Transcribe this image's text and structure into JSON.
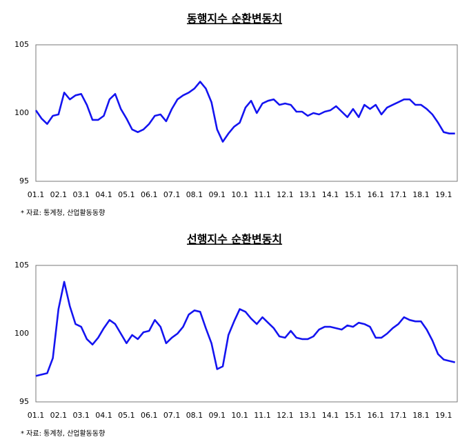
{
  "chart_data": [
    {
      "type": "line",
      "title": "동행지수 순환변동치",
      "source": "* 자료: 통계청, 산업활동동향",
      "x": [
        1,
        1.25,
        1.5,
        1.75,
        2,
        2.25,
        2.5,
        2.75,
        3,
        3.25,
        3.5,
        3.75,
        4,
        4.25,
        4.5,
        4.75,
        5,
        5.25,
        5.5,
        5.75,
        6,
        6.25,
        6.5,
        6.75,
        7,
        7.25,
        7.5,
        7.75,
        8,
        8.25,
        8.5,
        8.75,
        9,
        9.25,
        9.5,
        9.75,
        10,
        10.25,
        10.5,
        10.75,
        11,
        11.25,
        11.5,
        11.75,
        12,
        12.25,
        12.5,
        12.75,
        13,
        13.25,
        13.5,
        13.75,
        14,
        14.25,
        14.5,
        14.75,
        15,
        15.25,
        15.5,
        15.75,
        16,
        16.25,
        16.5,
        16.75,
        17,
        17.25,
        17.5,
        17.75,
        18,
        18.25,
        18.5,
        18.75,
        19,
        19.25,
        19.5
      ],
      "series": [
        {
          "color": "#1414f0",
          "values": [
            100.2,
            99.6,
            99.2,
            99.8,
            99.9,
            101.5,
            101.0,
            101.3,
            101.4,
            100.6,
            99.5,
            99.5,
            99.8,
            101.0,
            101.4,
            100.3,
            99.6,
            98.8,
            98.6,
            98.8,
            99.2,
            99.8,
            99.9,
            99.4,
            100.3,
            101.0,
            101.3,
            101.5,
            101.8,
            102.3,
            101.8,
            100.8,
            98.8,
            97.9,
            98.5,
            99.0,
            99.3,
            100.4,
            100.9,
            100.0,
            100.7,
            100.9,
            101.0,
            100.6,
            100.7,
            100.6,
            100.1,
            100.1,
            99.8,
            100.0,
            99.9,
            100.1,
            100.2,
            100.5,
            100.1,
            99.7,
            100.3,
            99.7,
            100.6,
            100.3,
            100.6,
            99.9,
            100.4,
            100.6,
            100.8,
            101.0,
            101.0,
            100.6,
            100.6,
            100.3,
            99.9,
            99.3,
            98.6,
            98.5,
            98.5
          ]
        }
      ],
      "xlim": [
        1,
        19.6
      ],
      "xticks": [
        {
          "value": 1,
          "label": "01.1"
        },
        {
          "value": 2,
          "label": "02.1"
        },
        {
          "value": 3,
          "label": "03.1"
        },
        {
          "value": 4,
          "label": "04.1"
        },
        {
          "value": 5,
          "label": "05.1"
        },
        {
          "value": 6,
          "label": "06.1"
        },
        {
          "value": 7,
          "label": "07.1"
        },
        {
          "value": 8,
          "label": "08.1"
        },
        {
          "value": 9,
          "label": "09.1"
        },
        {
          "value": 10,
          "label": "10.1"
        },
        {
          "value": 11,
          "label": "11.1"
        },
        {
          "value": 12,
          "label": "12.1"
        },
        {
          "value": 13,
          "label": "13.1"
        },
        {
          "value": 14,
          "label": "14.1"
        },
        {
          "value": 15,
          "label": "15.1"
        },
        {
          "value": 16,
          "label": "16.1"
        },
        {
          "value": 17,
          "label": "17.1"
        },
        {
          "value": 18,
          "label": "18.1"
        },
        {
          "value": 19,
          "label": "19.1"
        }
      ],
      "ylim": [
        95,
        105
      ],
      "yticks": [
        95,
        100,
        105
      ]
    },
    {
      "type": "line",
      "title": "선행지수 순환변동치",
      "source": "* 자료: 통계청, 산업활동동향",
      "x": [
        1,
        1.25,
        1.5,
        1.75,
        2,
        2.25,
        2.5,
        2.75,
        3,
        3.25,
        3.5,
        3.75,
        4,
        4.25,
        4.5,
        4.75,
        5,
        5.25,
        5.5,
        5.75,
        6,
        6.25,
        6.5,
        6.75,
        7,
        7.25,
        7.5,
        7.75,
        8,
        8.25,
        8.5,
        8.75,
        9,
        9.25,
        9.5,
        9.75,
        10,
        10.25,
        10.5,
        10.75,
        11,
        11.25,
        11.5,
        11.75,
        12,
        12.25,
        12.5,
        12.75,
        13,
        13.25,
        13.5,
        13.75,
        14,
        14.25,
        14.5,
        14.75,
        15,
        15.25,
        15.5,
        15.75,
        16,
        16.25,
        16.5,
        16.75,
        17,
        17.25,
        17.5,
        17.75,
        18,
        18.25,
        18.5,
        18.75,
        19,
        19.25,
        19.5
      ],
      "series": [
        {
          "color": "#1414f0",
          "values": [
            96.9,
            97.0,
            97.1,
            98.2,
            101.8,
            103.8,
            102.0,
            100.7,
            100.5,
            99.6,
            99.2,
            99.7,
            100.4,
            101.0,
            100.7,
            100.0,
            99.3,
            99.9,
            99.6,
            100.1,
            100.2,
            101.0,
            100.5,
            99.3,
            99.7,
            100.0,
            100.5,
            101.4,
            101.7,
            101.6,
            100.4,
            99.3,
            97.4,
            97.6,
            99.9,
            100.9,
            101.8,
            101.6,
            101.1,
            100.7,
            101.2,
            100.8,
            100.4,
            99.8,
            99.7,
            100.2,
            99.7,
            99.6,
            99.6,
            99.8,
            100.3,
            100.5,
            100.5,
            100.4,
            100.3,
            100.6,
            100.5,
            100.8,
            100.7,
            100.5,
            99.7,
            99.7,
            100.0,
            100.4,
            100.7,
            101.2,
            101.0,
            100.9,
            100.9,
            100.3,
            99.5,
            98.5,
            98.1,
            98.0,
            97.9
          ]
        }
      ],
      "xlim": [
        1,
        19.6
      ],
      "xticks": [
        {
          "value": 1,
          "label": "01.1"
        },
        {
          "value": 2,
          "label": "02.1"
        },
        {
          "value": 3,
          "label": "03.1"
        },
        {
          "value": 4,
          "label": "04.1"
        },
        {
          "value": 5,
          "label": "05.1"
        },
        {
          "value": 6,
          "label": "06.1"
        },
        {
          "value": 7,
          "label": "07.1"
        },
        {
          "value": 8,
          "label": "08.1"
        },
        {
          "value": 9,
          "label": "09.1"
        },
        {
          "value": 10,
          "label": "10.1"
        },
        {
          "value": 11,
          "label": "11.1"
        },
        {
          "value": 12,
          "label": "12.1"
        },
        {
          "value": 13,
          "label": "13.1"
        },
        {
          "value": 14,
          "label": "14.1"
        },
        {
          "value": 15,
          "label": "15.1"
        },
        {
          "value": 16,
          "label": "16.1"
        },
        {
          "value": 17,
          "label": "17.1"
        },
        {
          "value": 18,
          "label": "18.1"
        },
        {
          "value": 19,
          "label": "19.1"
        }
      ],
      "ylim": [
        95,
        105
      ],
      "yticks": [
        95,
        100,
        105
      ]
    }
  ]
}
